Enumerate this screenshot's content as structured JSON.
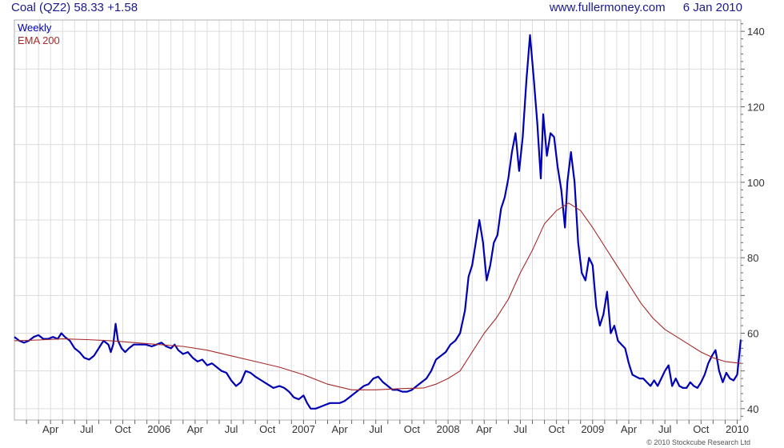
{
  "header": {
    "instrument": "Coal (QZ2)",
    "last": "58.33",
    "change": "+1.58",
    "site": "www.fullermoney.com",
    "date": "6 Jan 2010"
  },
  "copyright": "© 2010 Stockcube Research Ltd",
  "colors": {
    "weekly": "#0000b4",
    "ema": "#a52a2a",
    "grid": "#dcdcdc",
    "header_text": "#1a1a8c"
  },
  "chart_data": {
    "type": "line",
    "title": "Coal (QZ2) 58.33 +1.58",
    "x_unit": "months since Jan 2005",
    "xlim": [
      0.0,
      60.3
    ],
    "ylim": [
      37,
      143
    ],
    "y_ticks": [
      40,
      60,
      80,
      100,
      120,
      140
    ],
    "x_ticks": [
      {
        "label": "Apr",
        "x": 3
      },
      {
        "label": "Jul",
        "x": 6
      },
      {
        "label": "Oct",
        "x": 9
      },
      {
        "label": "2006",
        "x": 12
      },
      {
        "label": "Apr",
        "x": 15
      },
      {
        "label": "Jul",
        "x": 18
      },
      {
        "label": "Oct",
        "x": 21
      },
      {
        "label": "2007",
        "x": 24
      },
      {
        "label": "Apr",
        "x": 27
      },
      {
        "label": "Jul",
        "x": 30
      },
      {
        "label": "Oct",
        "x": 33
      },
      {
        "label": "2008",
        "x": 36
      },
      {
        "label": "Apr",
        "x": 39
      },
      {
        "label": "Jul",
        "x": 42
      },
      {
        "label": "Oct",
        "x": 45
      },
      {
        "label": "2009",
        "x": 48
      },
      {
        "label": "Apr",
        "x": 51
      },
      {
        "label": "Jul",
        "x": 54
      },
      {
        "label": "Oct",
        "x": 57
      },
      {
        "label": "2010",
        "x": 60
      }
    ],
    "grid": true,
    "legend_position": "top-left",
    "series": [
      {
        "name": "Weekly",
        "points": [
          [
            0.0,
            59
          ],
          [
            0.4,
            58
          ],
          [
            0.8,
            57.5
          ],
          [
            1.2,
            58
          ],
          [
            1.6,
            59
          ],
          [
            2.0,
            59.5
          ],
          [
            2.4,
            58.5
          ],
          [
            2.8,
            58.5
          ],
          [
            3.2,
            59
          ],
          [
            3.6,
            58.5
          ],
          [
            3.9,
            60
          ],
          [
            4.2,
            59
          ],
          [
            4.6,
            58
          ],
          [
            5.0,
            56
          ],
          [
            5.4,
            55
          ],
          [
            5.8,
            53.5
          ],
          [
            6.2,
            53
          ],
          [
            6.6,
            54
          ],
          [
            7.0,
            56
          ],
          [
            7.4,
            58
          ],
          [
            7.8,
            57
          ],
          [
            8.0,
            55
          ],
          [
            8.2,
            57
          ],
          [
            8.4,
            62.5
          ],
          [
            8.6,
            58
          ],
          [
            8.9,
            56
          ],
          [
            9.2,
            55
          ],
          [
            9.5,
            56
          ],
          [
            9.9,
            57
          ],
          [
            10.4,
            57
          ],
          [
            10.9,
            57
          ],
          [
            11.4,
            56.5
          ],
          [
            11.8,
            57
          ],
          [
            12.2,
            57.5
          ],
          [
            12.6,
            56.5
          ],
          [
            13.0,
            56
          ],
          [
            13.3,
            57
          ],
          [
            13.6,
            55.5
          ],
          [
            14.0,
            54.5
          ],
          [
            14.4,
            55
          ],
          [
            14.8,
            53.5
          ],
          [
            15.2,
            52.5
          ],
          [
            15.6,
            53
          ],
          [
            16.0,
            51.5
          ],
          [
            16.4,
            52
          ],
          [
            16.8,
            51
          ],
          [
            17.2,
            50
          ],
          [
            17.6,
            49.5
          ],
          [
            18.0,
            47.5
          ],
          [
            18.4,
            46
          ],
          [
            18.8,
            47
          ],
          [
            19.2,
            50
          ],
          [
            19.6,
            49.5
          ],
          [
            20.0,
            48.5
          ],
          [
            20.5,
            47.5
          ],
          [
            21.0,
            46.5
          ],
          [
            21.5,
            45.5
          ],
          [
            22.0,
            46
          ],
          [
            22.4,
            45.5
          ],
          [
            22.8,
            44.5
          ],
          [
            23.2,
            43
          ],
          [
            23.6,
            42.5
          ],
          [
            24.0,
            43.5
          ],
          [
            24.3,
            41.5
          ],
          [
            24.6,
            40
          ],
          [
            25.0,
            40
          ],
          [
            25.4,
            40.5
          ],
          [
            25.8,
            41
          ],
          [
            26.2,
            41.5
          ],
          [
            26.6,
            41.5
          ],
          [
            27.0,
            41.5
          ],
          [
            27.4,
            42
          ],
          [
            27.8,
            43
          ],
          [
            28.2,
            44
          ],
          [
            28.6,
            45
          ],
          [
            29.0,
            46
          ],
          [
            29.4,
            46.5
          ],
          [
            29.8,
            48
          ],
          [
            30.2,
            48.5
          ],
          [
            30.6,
            47
          ],
          [
            31.0,
            46
          ],
          [
            31.4,
            45
          ],
          [
            31.8,
            45
          ],
          [
            32.2,
            44.5
          ],
          [
            32.6,
            44.5
          ],
          [
            33.0,
            45
          ],
          [
            33.4,
            46
          ],
          [
            33.8,
            47
          ],
          [
            34.2,
            48
          ],
          [
            34.6,
            50
          ],
          [
            35.0,
            53
          ],
          [
            35.4,
            54
          ],
          [
            35.8,
            55
          ],
          [
            36.2,
            57
          ],
          [
            36.6,
            58
          ],
          [
            37.0,
            60
          ],
          [
            37.4,
            66
          ],
          [
            37.7,
            75
          ],
          [
            38.0,
            78
          ],
          [
            38.3,
            84
          ],
          [
            38.6,
            90
          ],
          [
            38.9,
            84
          ],
          [
            39.2,
            74
          ],
          [
            39.5,
            78
          ],
          [
            39.8,
            84
          ],
          [
            40.1,
            86
          ],
          [
            40.4,
            93
          ],
          [
            40.7,
            96
          ],
          [
            41.0,
            101
          ],
          [
            41.3,
            108
          ],
          [
            41.6,
            113
          ],
          [
            41.9,
            103
          ],
          [
            42.2,
            112
          ],
          [
            42.5,
            127
          ],
          [
            42.8,
            139
          ],
          [
            43.1,
            128
          ],
          [
            43.4,
            116
          ],
          [
            43.7,
            101
          ],
          [
            43.9,
            118
          ],
          [
            44.2,
            107
          ],
          [
            44.5,
            113
          ],
          [
            44.8,
            112
          ],
          [
            45.1,
            104
          ],
          [
            45.4,
            98
          ],
          [
            45.7,
            88
          ],
          [
            45.9,
            100
          ],
          [
            46.2,
            108
          ],
          [
            46.5,
            100
          ],
          [
            46.8,
            84
          ],
          [
            47.1,
            76
          ],
          [
            47.4,
            74
          ],
          [
            47.7,
            80
          ],
          [
            48.0,
            78
          ],
          [
            48.3,
            67
          ],
          [
            48.6,
            62
          ],
          [
            48.9,
            65
          ],
          [
            49.2,
            71
          ],
          [
            49.5,
            60
          ],
          [
            49.8,
            62
          ],
          [
            50.1,
            58
          ],
          [
            50.4,
            57
          ],
          [
            50.7,
            56
          ],
          [
            51.0,
            52
          ],
          [
            51.3,
            49
          ],
          [
            51.6,
            48.5
          ],
          [
            51.9,
            48
          ],
          [
            52.2,
            48
          ],
          [
            52.5,
            47
          ],
          [
            52.8,
            46
          ],
          [
            53.1,
            47.5
          ],
          [
            53.4,
            46
          ],
          [
            53.7,
            48
          ],
          [
            54.0,
            50
          ],
          [
            54.3,
            51.5
          ],
          [
            54.6,
            46
          ],
          [
            54.9,
            48
          ],
          [
            55.2,
            46
          ],
          [
            55.5,
            45.5
          ],
          [
            55.8,
            45.5
          ],
          [
            56.1,
            47
          ],
          [
            56.4,
            46
          ],
          [
            56.7,
            45.5
          ],
          [
            57.0,
            47
          ],
          [
            57.3,
            49
          ],
          [
            57.6,
            52
          ],
          [
            57.9,
            54
          ],
          [
            58.2,
            55.5
          ],
          [
            58.5,
            50
          ],
          [
            58.8,
            47
          ],
          [
            59.1,
            49.5
          ],
          [
            59.4,
            48
          ],
          [
            59.7,
            47.5
          ],
          [
            60.0,
            49
          ],
          [
            60.3,
            58.3
          ]
        ]
      },
      {
        "name": "EMA 200",
        "points": [
          [
            0.0,
            58
          ],
          [
            2.0,
            58.2
          ],
          [
            4.0,
            58.5
          ],
          [
            6.0,
            58.3
          ],
          [
            8.0,
            58
          ],
          [
            10.0,
            57.5
          ],
          [
            12.0,
            57
          ],
          [
            14.0,
            56.5
          ],
          [
            16.0,
            55.5
          ],
          [
            18.0,
            54
          ],
          [
            20.0,
            52.5
          ],
          [
            22.0,
            51
          ],
          [
            24.0,
            49
          ],
          [
            26.0,
            46.5
          ],
          [
            28.0,
            45
          ],
          [
            30.0,
            45
          ],
          [
            32.0,
            45.3
          ],
          [
            34.0,
            45.5
          ],
          [
            35.0,
            46.5
          ],
          [
            36.0,
            48
          ],
          [
            37.0,
            50
          ],
          [
            38.0,
            55
          ],
          [
            39.0,
            60
          ],
          [
            40.0,
            64
          ],
          [
            41.0,
            69
          ],
          [
            42.0,
            76
          ],
          [
            43.0,
            82
          ],
          [
            44.0,
            89
          ],
          [
            45.0,
            92.5
          ],
          [
            46.0,
            94.5
          ],
          [
            47.0,
            92.5
          ],
          [
            48.0,
            88
          ],
          [
            49.0,
            83
          ],
          [
            50.0,
            78
          ],
          [
            51.0,
            73
          ],
          [
            52.0,
            68
          ],
          [
            53.0,
            64
          ],
          [
            54.0,
            61
          ],
          [
            55.0,
            59
          ],
          [
            56.0,
            57
          ],
          [
            57.0,
            55
          ],
          [
            58.0,
            53.5
          ],
          [
            59.0,
            52.5
          ],
          [
            60.3,
            52
          ]
        ]
      }
    ]
  }
}
